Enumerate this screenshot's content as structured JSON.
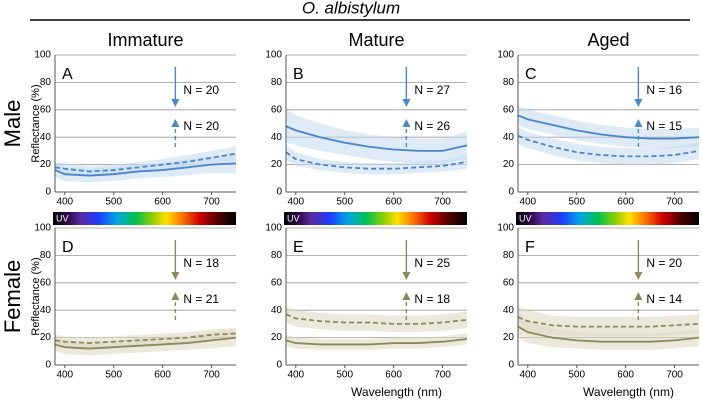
{
  "title": "O. albistylum",
  "columns": [
    "Immature",
    "Mature",
    "Aged"
  ],
  "rows": [
    "Male",
    "Female"
  ],
  "chart_data": [
    {
      "type": "line",
      "panel": "A",
      "ylabel": "Reflectance (%)",
      "annotations": [
        "N = 20",
        "N = 20"
      ],
      "spectrum_label": "UV",
      "x": [
        380,
        400,
        450,
        500,
        550,
        600,
        650,
        700,
        750
      ],
      "xlim": [
        380,
        750
      ],
      "xticks": [
        400,
        500,
        600,
        700
      ],
      "ylim": [
        0,
        100
      ],
      "yticks": [
        0,
        20,
        40,
        60,
        80,
        100
      ],
      "grid": true,
      "series": [
        {
          "color": "#4a86c8",
          "band_color": "#c3d8ef",
          "dashed": false,
          "values": [
            16,
            13,
            12,
            13,
            15,
            16,
            18,
            20,
            21
          ],
          "error": [
            5,
            5,
            5,
            5,
            5,
            5,
            6,
            6,
            7
          ]
        },
        {
          "color": "#4a86c8",
          "band_color": "#c3d8ef",
          "dashed": true,
          "values": [
            18,
            17,
            15,
            16,
            18,
            20,
            22,
            25,
            28
          ],
          "error": [
            4,
            4,
            4,
            4,
            4,
            4,
            5,
            5,
            5
          ]
        }
      ]
    },
    {
      "type": "line",
      "panel": "B",
      "annotations": [
        "N = 27",
        "N = 26"
      ],
      "spectrum_label": "UV",
      "x": [
        380,
        400,
        450,
        500,
        550,
        600,
        650,
        700,
        750
      ],
      "xlim": [
        380,
        750
      ],
      "xticks": [
        400,
        500,
        600,
        700
      ],
      "ylim": [
        0,
        100
      ],
      "yticks": [
        0,
        20,
        40,
        60,
        80,
        100
      ],
      "grid": true,
      "series": [
        {
          "color": "#4a86c8",
          "band_color": "#c3d8ef",
          "dashed": false,
          "values": [
            48,
            45,
            40,
            36,
            33,
            31,
            30,
            30,
            34
          ],
          "error": [
            12,
            11,
            10,
            9,
            9,
            9,
            9,
            9,
            10
          ]
        },
        {
          "color": "#4a86c8",
          "band_color": "#c3d8ef",
          "dashed": true,
          "values": [
            29,
            24,
            20,
            18,
            17,
            17,
            18,
            19,
            22
          ],
          "error": [
            5,
            5,
            4,
            4,
            4,
            4,
            4,
            4,
            5
          ]
        }
      ]
    },
    {
      "type": "line",
      "panel": "C",
      "annotations": [
        "N = 16",
        "N = 15"
      ],
      "spectrum_label": "UV",
      "x": [
        380,
        400,
        450,
        500,
        550,
        600,
        650,
        700,
        750
      ],
      "xlim": [
        380,
        750
      ],
      "xticks": [
        400,
        500,
        600,
        700
      ],
      "ylim": [
        0,
        100
      ],
      "yticks": [
        0,
        20,
        40,
        60,
        80,
        100
      ],
      "grid": true,
      "series": [
        {
          "color": "#4a86c8",
          "band_color": "#c3d8ef",
          "dashed": false,
          "values": [
            56,
            53,
            49,
            45,
            42,
            40,
            39,
            39,
            40
          ],
          "error": [
            7,
            7,
            7,
            7,
            7,
            7,
            7,
            7,
            7
          ]
        },
        {
          "color": "#4a86c8",
          "band_color": "#c3d8ef",
          "dashed": true,
          "values": [
            41,
            38,
            33,
            29,
            27,
            26,
            26,
            27,
            30
          ],
          "error": [
            6,
            6,
            6,
            6,
            6,
            6,
            6,
            6,
            6
          ]
        }
      ]
    },
    {
      "type": "line",
      "panel": "D",
      "ylabel": "Reflectance (%)",
      "annotations": [
        "N = 18",
        "N = 21"
      ],
      "x": [
        380,
        400,
        450,
        500,
        550,
        600,
        650,
        700,
        750
      ],
      "xlim": [
        380,
        750
      ],
      "xticks": [
        400,
        500,
        600,
        700
      ],
      "ylim": [
        0,
        100
      ],
      "yticks": [
        0,
        20,
        40,
        60,
        80,
        100
      ],
      "grid": true,
      "series": [
        {
          "color": "#8c8a5c",
          "band_color": "#dcd7bf",
          "dashed": false,
          "values": [
            15,
            13,
            12,
            13,
            14,
            15,
            16,
            18,
            20
          ],
          "error": [
            5,
            5,
            5,
            5,
            5,
            5,
            5,
            6,
            6
          ]
        },
        {
          "color": "#8c8a5c",
          "band_color": "#dcd7bf",
          "dashed": true,
          "values": [
            18,
            17,
            16,
            17,
            18,
            19,
            20,
            22,
            23
          ],
          "error": [
            4,
            4,
            4,
            4,
            4,
            4,
            4,
            4,
            4
          ]
        }
      ]
    },
    {
      "type": "line",
      "panel": "E",
      "annotations": [
        "N = 25",
        "N = 18"
      ],
      "xlabel": "Wavelength (nm)",
      "x": [
        380,
        400,
        450,
        500,
        550,
        600,
        650,
        700,
        750
      ],
      "xlim": [
        380,
        750
      ],
      "xticks": [
        400,
        500,
        600,
        700
      ],
      "ylim": [
        0,
        100
      ],
      "yticks": [
        0,
        20,
        40,
        60,
        80,
        100
      ],
      "grid": true,
      "series": [
        {
          "color": "#8c8a5c",
          "band_color": "#dcd7bf",
          "dashed": false,
          "values": [
            18,
            16,
            15,
            15,
            15,
            16,
            16,
            17,
            19
          ],
          "error": [
            4,
            4,
            4,
            4,
            4,
            4,
            4,
            4,
            4
          ]
        },
        {
          "color": "#8c8a5c",
          "band_color": "#dcd7bf",
          "dashed": true,
          "values": [
            37,
            34,
            32,
            31,
            31,
            30,
            30,
            31,
            33
          ],
          "error": [
            6,
            6,
            6,
            6,
            6,
            6,
            6,
            6,
            6
          ]
        }
      ]
    },
    {
      "type": "line",
      "panel": "F",
      "annotations": [
        "N = 20",
        "N = 14"
      ],
      "xlabel": "Wavelength (nm)",
      "x": [
        380,
        400,
        450,
        500,
        550,
        600,
        650,
        700,
        750
      ],
      "xlim": [
        380,
        750
      ],
      "xticks": [
        400,
        500,
        600,
        700
      ],
      "ylim": [
        0,
        100
      ],
      "yticks": [
        0,
        20,
        40,
        60,
        80,
        100
      ],
      "grid": true,
      "series": [
        {
          "color": "#8c8a5c",
          "band_color": "#dcd7bf",
          "dashed": false,
          "values": [
            28,
            24,
            20,
            18,
            17,
            17,
            17,
            18,
            20
          ],
          "error": [
            8,
            8,
            7,
            6,
            6,
            6,
            6,
            6,
            6
          ]
        },
        {
          "color": "#8c8a5c",
          "band_color": "#dcd7bf",
          "dashed": true,
          "values": [
            35,
            32,
            29,
            28,
            28,
            28,
            28,
            29,
            30
          ],
          "error": [
            8,
            8,
            7,
            7,
            7,
            7,
            7,
            7,
            7
          ]
        }
      ]
    }
  ]
}
